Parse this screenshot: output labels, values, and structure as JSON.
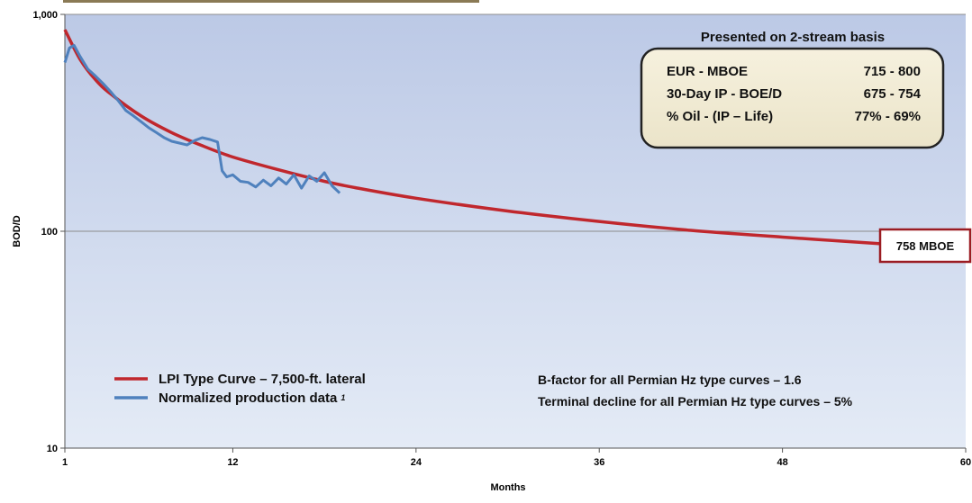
{
  "chart_data": {
    "type": "line",
    "y_scale": "log",
    "xlabel": "Months",
    "ylabel": "BOD/D",
    "xlim": [
      1,
      60
    ],
    "ylim": [
      10,
      1000
    ],
    "x_ticks": [
      1,
      12,
      24,
      36,
      48,
      60
    ],
    "y_ticks": [
      10,
      100,
      1000
    ],
    "y_tick_labels": [
      "10",
      "100",
      "1,000"
    ],
    "grid": "horizontal at major y ticks",
    "series": [
      {
        "name": "LPI Type Curve – 7,500-ft. lateral",
        "color": "#c0272d",
        "x": [
          1,
          2,
          3,
          4,
          6,
          8,
          10,
          12,
          15,
          18,
          20,
          24,
          30,
          36,
          42,
          48,
          54,
          56
        ],
        "y": [
          850,
          620,
          500,
          430,
          340,
          285,
          248,
          220,
          192,
          170,
          159,
          142,
          124,
          111,
          101,
          94,
          88,
          86
        ]
      },
      {
        "name": "Normalized production data",
        "name_superscript": "1",
        "color": "#4f81bd",
        "x": [
          1,
          1.3,
          1.6,
          2,
          2.5,
          3,
          3.5,
          4,
          4.5,
          5,
          5.5,
          6,
          6.5,
          7,
          7.5,
          8,
          8.5,
          9,
          9.5,
          10,
          10.5,
          11,
          11.3,
          11.6,
          12,
          12.5,
          13,
          13.5,
          14,
          14.5,
          15,
          15.5,
          16,
          16.5,
          17,
          17.5,
          18,
          18.5,
          19
        ],
        "y": [
          600,
          700,
          720,
          640,
          560,
          520,
          480,
          440,
          400,
          360,
          340,
          320,
          300,
          285,
          270,
          260,
          255,
          250,
          262,
          270,
          265,
          258,
          190,
          178,
          182,
          170,
          168,
          160,
          172,
          162,
          176,
          165,
          182,
          158,
          180,
          170,
          186,
          162,
          150
        ]
      }
    ],
    "legend_position": "bottom-left",
    "notes": [
      "B-factor for all Permian Hz type curves – 1.6",
      "Terminal decline for all Permian Hz type curves – 5%"
    ],
    "info_box": {
      "title": "Presented on 2-stream basis",
      "rows": [
        {
          "label": "EUR - MBOE",
          "value": "715 - 800"
        },
        {
          "label": "30-Day IP - BOE/D",
          "value": "675 - 754"
        },
        {
          "label": "% Oil - (IP – Life)",
          "value": "77% - 69%"
        }
      ]
    },
    "callout": "758 MBOE"
  }
}
